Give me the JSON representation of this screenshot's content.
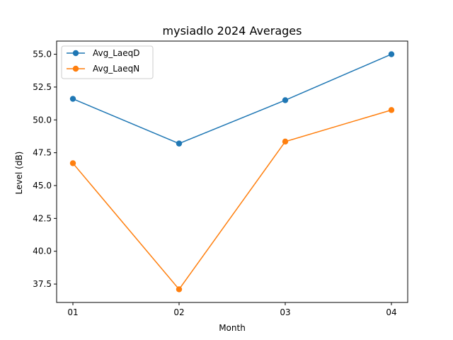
{
  "chart_data": {
    "type": "line",
    "title": "mysiadlo 2024 Averages",
    "xlabel": "Month",
    "ylabel": "Level (dB)",
    "categories": [
      "01",
      "02",
      "03",
      "04"
    ],
    "ylim": [
      36.1,
      56.0
    ],
    "yticks": [
      "37.5",
      "40.0",
      "42.5",
      "45.0",
      "47.5",
      "50.0",
      "52.5",
      "55.0"
    ],
    "grid": false,
    "legend_position": "top-left",
    "series": [
      {
        "name": "Avg_LaeqD",
        "color": "#1f77b4",
        "values": [
          51.6,
          48.2,
          51.5,
          55.0
        ]
      },
      {
        "name": "Avg_LaeqN",
        "color": "#ff7f0e",
        "values": [
          46.7,
          37.1,
          48.35,
          50.75
        ]
      }
    ]
  }
}
